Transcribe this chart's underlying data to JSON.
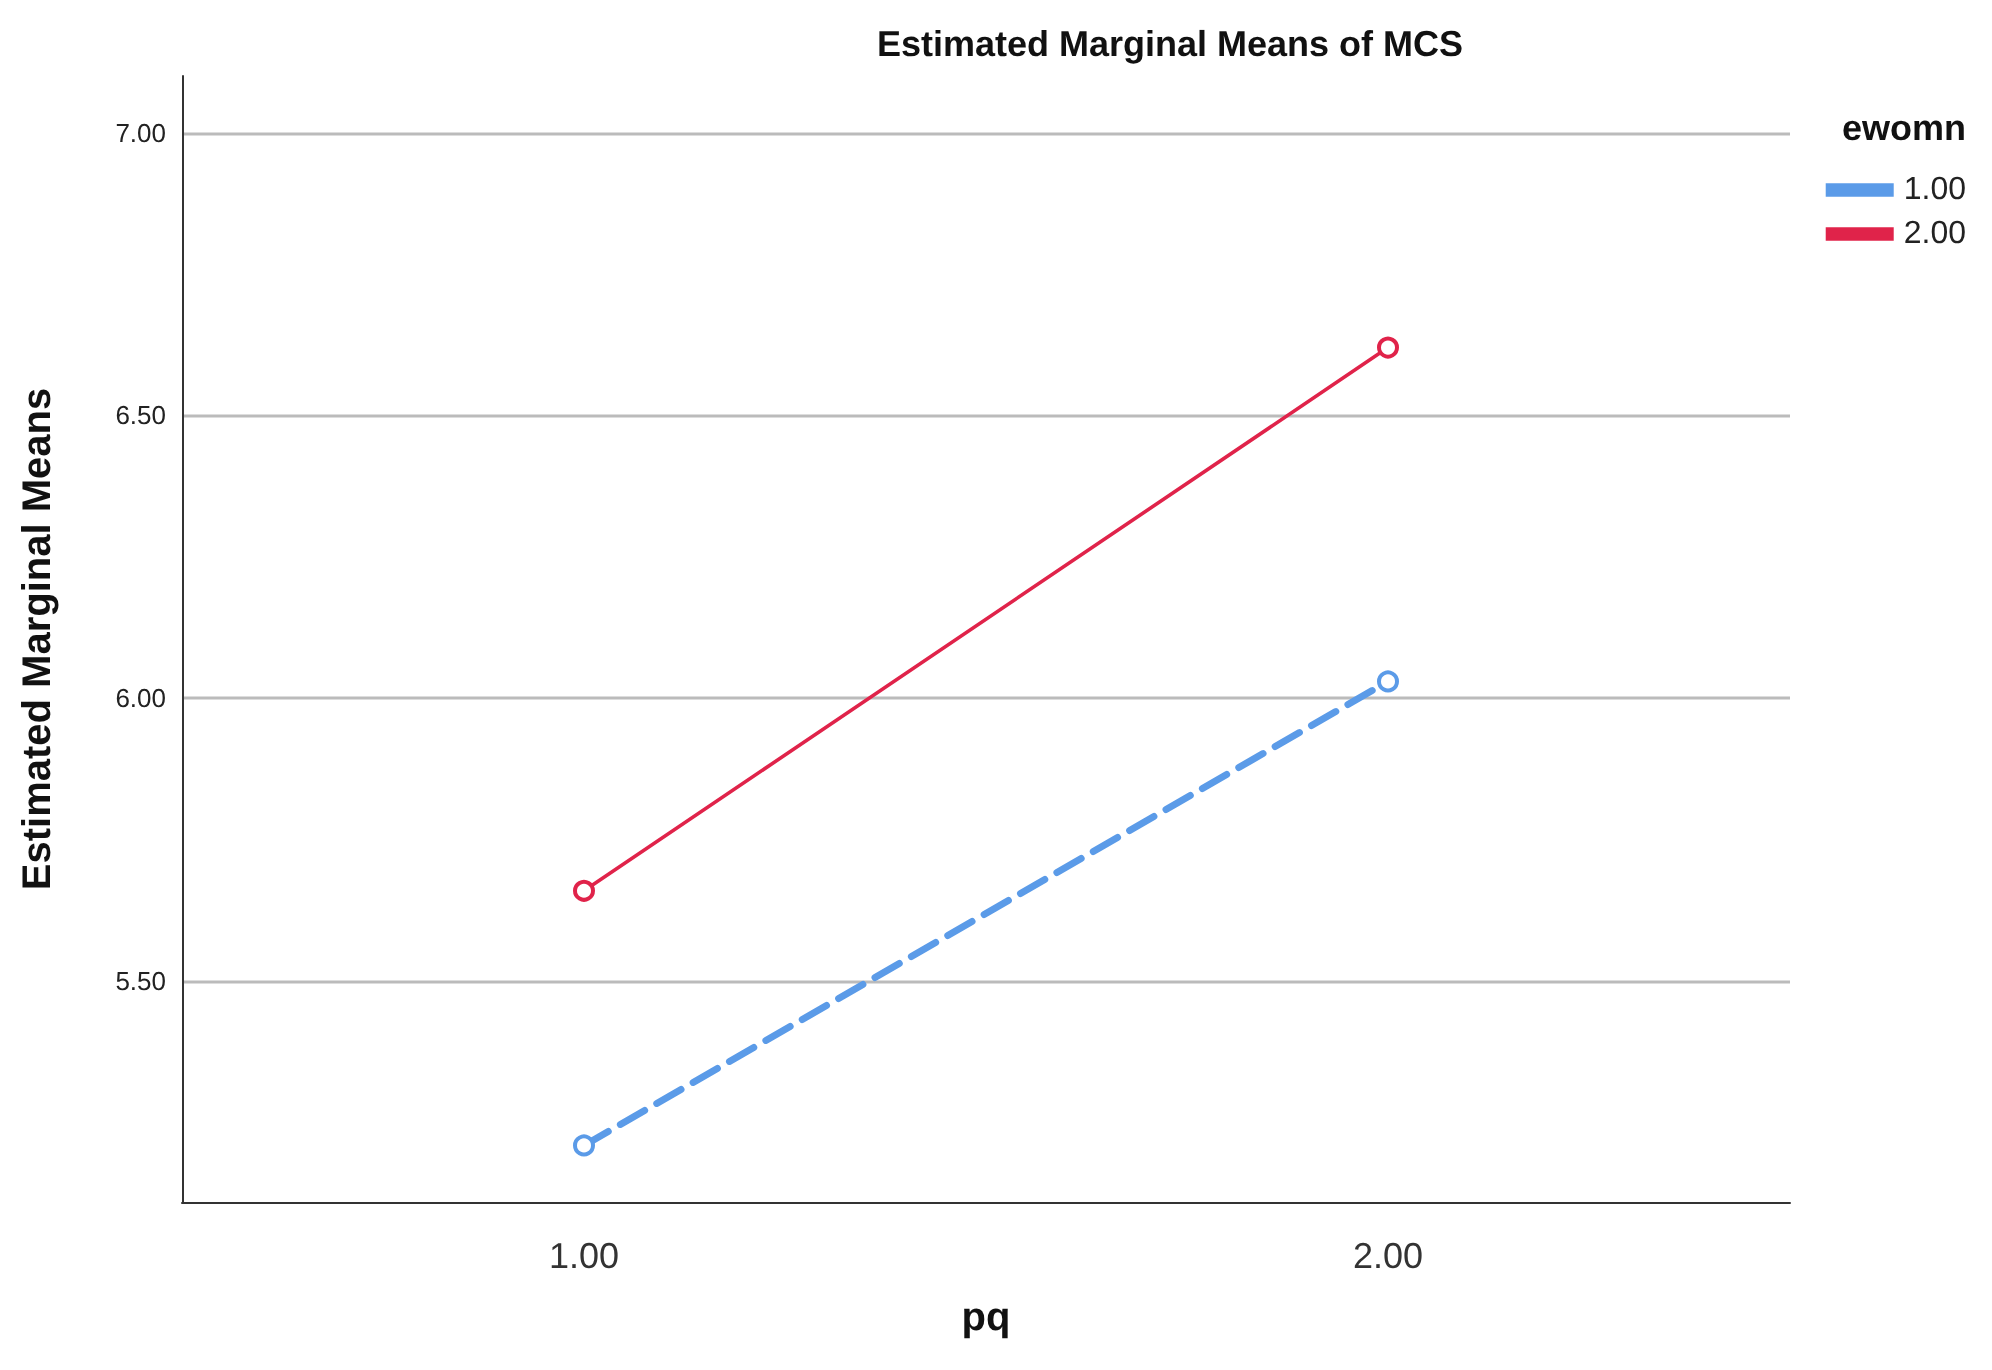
{
  "chart_data": {
    "type": "line",
    "title": "Estimated Marginal Means of MCS",
    "xlabel": "pq",
    "ylabel": "Estimated Marginal Means",
    "legend_title": "ewomn",
    "categories": [
      "1.00",
      "2.00"
    ],
    "series": [
      {
        "name": "1.00",
        "color": "#5b9be8",
        "values": [
          5.21,
          6.03
        ],
        "line_style": "dashed"
      },
      {
        "name": "2.00",
        "color": "#e0234a",
        "values": [
          5.66,
          6.62
        ],
        "line_style": "solid"
      }
    ],
    "ylim": [
      5.11,
      7.1
    ],
    "yticks": [
      {
        "value": 5.5,
        "label": "5.50"
      },
      {
        "value": 6,
        "label": "6.00"
      },
      {
        "value": 6.5,
        "label": "6.50"
      },
      {
        "value": 7,
        "label": "7.00"
      }
    ],
    "grid": "y",
    "legend": "top right",
    "marker": "circle"
  }
}
